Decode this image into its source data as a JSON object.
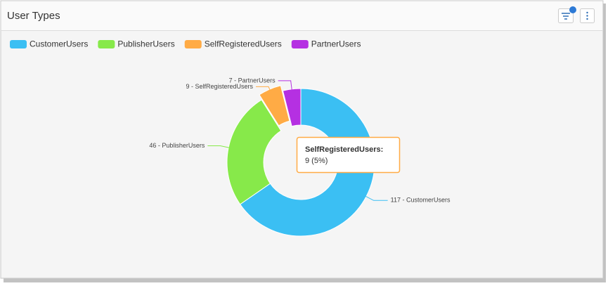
{
  "chart_data": {
    "type": "pie",
    "donut": true,
    "title": "User Types",
    "categories": [
      "CustomerUsers",
      "PublisherUsers",
      "SelfRegisteredUsers",
      "PartnerUsers"
    ],
    "values": [
      117,
      46,
      9,
      7
    ],
    "value_labels": [
      "117 - CustomerUsers",
      "46 - PublisherUsers",
      "9 - SelfRegisteredUsers",
      "7 - PartnerUsers"
    ],
    "colors": [
      "#3bbff3",
      "#87e94a",
      "#ffab45",
      "#b530e2"
    ],
    "tooltip": {
      "title": "SelfRegisteredUsers:",
      "value": "9 (5%)"
    }
  }
}
